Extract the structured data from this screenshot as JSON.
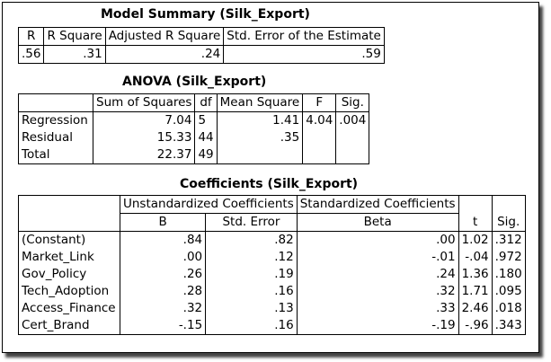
{
  "model_summary": {
    "title": "Model Summary (Silk_Export)",
    "headers": [
      "R",
      "R Square",
      "Adjusted R Square",
      "Std. Error of the Estimate"
    ],
    "row": [
      ".56",
      ".31",
      ".24",
      ".59"
    ]
  },
  "anova": {
    "title": "ANOVA (Silk_Export)",
    "headers": [
      "",
      "Sum of Squares",
      "df",
      "Mean Square",
      "F",
      "Sig."
    ],
    "rows": [
      [
        "Regression",
        "7.04",
        "5",
        "1.41",
        "4.04",
        ".004"
      ],
      [
        "Residual",
        "15.33",
        "44",
        ".35",
        "",
        ""
      ],
      [
        "Total",
        "22.37",
        "49",
        "",
        "",
        ""
      ]
    ]
  },
  "coefficients": {
    "title": "Coefficients (Silk_Export)",
    "group_headers": [
      "Unstandardized Coefficients",
      "Standardized Coefficients"
    ],
    "sub_headers": [
      "B",
      "Std. Error",
      "Beta",
      "t",
      "Sig."
    ],
    "rows": [
      [
        "(Constant)",
        ".84",
        ".82",
        ".00",
        "1.02",
        ".312"
      ],
      [
        "Market_Link",
        ".00",
        ".12",
        "-.01",
        "-.04",
        ".972"
      ],
      [
        "Gov_Policy",
        ".26",
        ".19",
        ".24",
        "1.36",
        ".180"
      ],
      [
        "Tech_Adoption",
        ".28",
        ".16",
        ".32",
        "1.71",
        ".095"
      ],
      [
        "Access_Finance",
        ".32",
        ".13",
        ".33",
        "2.46",
        ".018"
      ],
      [
        "Cert_Brand",
        "-.15",
        ".16",
        "-.19",
        "-.96",
        ".343"
      ]
    ]
  }
}
